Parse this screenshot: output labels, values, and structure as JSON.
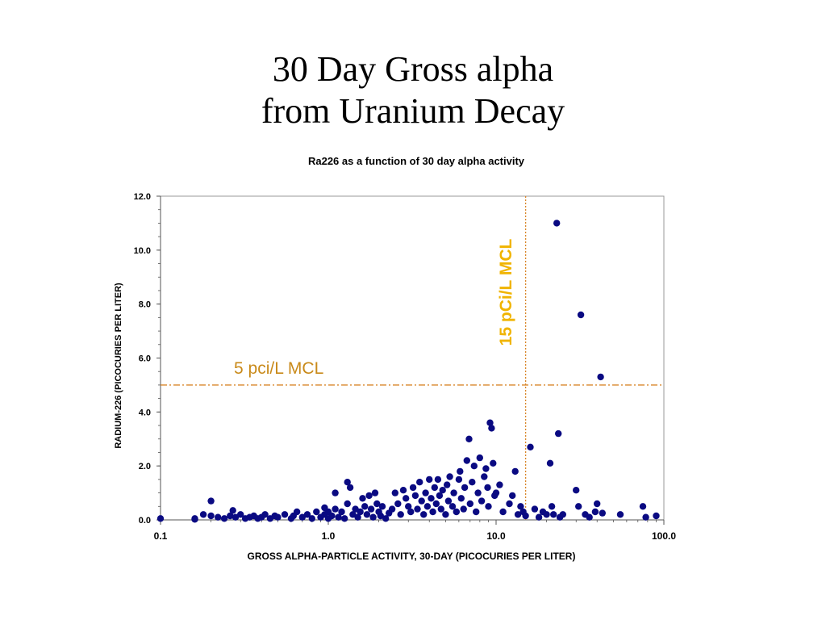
{
  "slide": {
    "title_line1": "30 Day Gross alpha",
    "title_line2": "from Uranium Decay"
  },
  "colors": {
    "marker": "#0a0a82",
    "mcl": "#d9862a",
    "mcl_vertical_label": "#f0b400",
    "mcl_horizontal_label": "#c98a1a",
    "axis": "#555555"
  },
  "chart_data": {
    "type": "scatter",
    "title": "Ra226 as a function of 30 day alpha activity",
    "xlabel": "GROSS ALPHA-PARTICLE ACTIVITY, 30-DAY (PICOCURIES PER LITER)",
    "ylabel": "RADIUM-226 (PICOCURIES PER LITER)",
    "x_scale": "log",
    "xlim": [
      0.1,
      100
    ],
    "ylim": [
      0,
      12
    ],
    "x_ticks": [
      "0.1",
      "1.0",
      "10.0",
      "100.0"
    ],
    "y_ticks": [
      "0.0",
      "2.0",
      "4.0",
      "6.0",
      "8.0",
      "10.0",
      "12.0"
    ],
    "grid": false,
    "reference_lines": [
      {
        "orientation": "vertical",
        "value": 15,
        "label": "15 pCi/L MCL"
      },
      {
        "orientation": "horizontal",
        "value": 5,
        "label": "5 pci/L MCL"
      }
    ],
    "series": [
      {
        "points": [
          [
            0.1,
            0.05
          ],
          [
            0.16,
            0.05
          ],
          [
            0.16,
            0.02
          ],
          [
            0.18,
            0.2
          ],
          [
            0.2,
            0.7
          ],
          [
            0.2,
            0.15
          ],
          [
            0.22,
            0.1
          ],
          [
            0.24,
            0.05
          ],
          [
            0.26,
            0.15
          ],
          [
            0.27,
            0.35
          ],
          [
            0.28,
            0.1
          ],
          [
            0.3,
            0.2
          ],
          [
            0.32,
            0.05
          ],
          [
            0.34,
            0.1
          ],
          [
            0.36,
            0.15
          ],
          [
            0.38,
            0.05
          ],
          [
            0.4,
            0.1
          ],
          [
            0.42,
            0.2
          ],
          [
            0.45,
            0.05
          ],
          [
            0.48,
            0.15
          ],
          [
            0.5,
            0.1
          ],
          [
            0.55,
            0.2
          ],
          [
            0.6,
            0.05
          ],
          [
            0.62,
            0.15
          ],
          [
            0.65,
            0.3
          ],
          [
            0.7,
            0.1
          ],
          [
            0.75,
            0.2
          ],
          [
            0.8,
            0.05
          ],
          [
            0.85,
            0.3
          ],
          [
            0.9,
            0.1
          ],
          [
            0.95,
            0.2
          ],
          [
            0.95,
            0.45
          ],
          [
            1.0,
            0.05
          ],
          [
            1.0,
            0.3
          ],
          [
            1.05,
            0.15
          ],
          [
            1.1,
            1.0
          ],
          [
            1.1,
            0.4
          ],
          [
            1.15,
            0.1
          ],
          [
            1.2,
            0.3
          ],
          [
            1.25,
            0.05
          ],
          [
            1.3,
            1.4
          ],
          [
            1.3,
            0.6
          ],
          [
            1.35,
            1.2
          ],
          [
            1.4,
            0.2
          ],
          [
            1.45,
            0.4
          ],
          [
            1.5,
            0.1
          ],
          [
            1.55,
            0.3
          ],
          [
            1.6,
            0.8
          ],
          [
            1.65,
            0.5
          ],
          [
            1.7,
            0.2
          ],
          [
            1.75,
            0.9
          ],
          [
            1.8,
            0.4
          ],
          [
            1.85,
            0.1
          ],
          [
            1.9,
            1.0
          ],
          [
            1.95,
            0.6
          ],
          [
            2.0,
            0.3
          ],
          [
            2.05,
            0.15
          ],
          [
            2.1,
            0.5
          ],
          [
            2.2,
            0.05
          ],
          [
            2.3,
            0.25
          ],
          [
            2.4,
            0.4
          ],
          [
            2.5,
            1.0
          ],
          [
            2.6,
            0.6
          ],
          [
            2.7,
            0.2
          ],
          [
            2.8,
            1.1
          ],
          [
            2.9,
            0.8
          ],
          [
            3.0,
            0.5
          ],
          [
            3.1,
            0.3
          ],
          [
            3.2,
            1.2
          ],
          [
            3.3,
            0.9
          ],
          [
            3.4,
            0.4
          ],
          [
            3.5,
            1.4
          ],
          [
            3.6,
            0.7
          ],
          [
            3.7,
            0.2
          ],
          [
            3.8,
            1.0
          ],
          [
            3.9,
            0.5
          ],
          [
            4.0,
            1.5
          ],
          [
            4.1,
            0.8
          ],
          [
            4.2,
            0.3
          ],
          [
            4.3,
            1.2
          ],
          [
            4.4,
            0.6
          ],
          [
            4.5,
            1.5
          ],
          [
            4.6,
            0.9
          ],
          [
            4.7,
            0.4
          ],
          [
            4.8,
            1.1
          ],
          [
            5.0,
            0.2
          ],
          [
            5.1,
            1.3
          ],
          [
            5.2,
            0.7
          ],
          [
            5.3,
            1.6
          ],
          [
            5.5,
            0.5
          ],
          [
            5.6,
            1.0
          ],
          [
            5.8,
            0.3
          ],
          [
            6.0,
            1.5
          ],
          [
            6.1,
            1.8
          ],
          [
            6.2,
            0.8
          ],
          [
            6.4,
            0.4
          ],
          [
            6.5,
            1.2
          ],
          [
            6.7,
            2.2
          ],
          [
            6.9,
            3.0
          ],
          [
            7.0,
            0.6
          ],
          [
            7.2,
            1.4
          ],
          [
            7.4,
            2.0
          ],
          [
            7.6,
            0.3
          ],
          [
            7.8,
            1.0
          ],
          [
            8.0,
            2.3
          ],
          [
            8.2,
            0.7
          ],
          [
            8.5,
            1.6
          ],
          [
            8.7,
            1.9
          ],
          [
            8.9,
            1.2
          ],
          [
            9.0,
            0.5
          ],
          [
            9.2,
            3.6
          ],
          [
            9.4,
            3.4
          ],
          [
            9.6,
            2.1
          ],
          [
            9.8,
            0.9
          ],
          [
            10.0,
            1.0
          ],
          [
            10.5,
            1.3
          ],
          [
            11.0,
            0.3
          ],
          [
            12.0,
            0.6
          ],
          [
            12.5,
            0.9
          ],
          [
            13.0,
            1.8
          ],
          [
            13.5,
            0.2
          ],
          [
            14.0,
            0.5
          ],
          [
            14.5,
            0.3
          ],
          [
            15.0,
            0.15
          ],
          [
            16.0,
            2.7
          ],
          [
            17.0,
            0.4
          ],
          [
            18.0,
            0.1
          ],
          [
            19.0,
            0.3
          ],
          [
            20.0,
            0.2
          ],
          [
            21.0,
            2.1
          ],
          [
            21.5,
            0.5
          ],
          [
            22.0,
            0.2
          ],
          [
            23.0,
            11.0
          ],
          [
            23.5,
            3.2
          ],
          [
            24.0,
            0.1
          ],
          [
            25.0,
            0.2
          ],
          [
            30.0,
            1.1
          ],
          [
            31.0,
            0.5
          ],
          [
            32.0,
            7.6
          ],
          [
            34.0,
            0.2
          ],
          [
            36.0,
            0.1
          ],
          [
            39.0,
            0.3
          ],
          [
            40.0,
            0.6
          ],
          [
            42.0,
            5.3
          ],
          [
            43.0,
            0.25
          ],
          [
            55.0,
            0.2
          ],
          [
            75.0,
            0.5
          ],
          [
            78.0,
            0.1
          ],
          [
            90.0,
            0.15
          ]
        ]
      }
    ]
  }
}
